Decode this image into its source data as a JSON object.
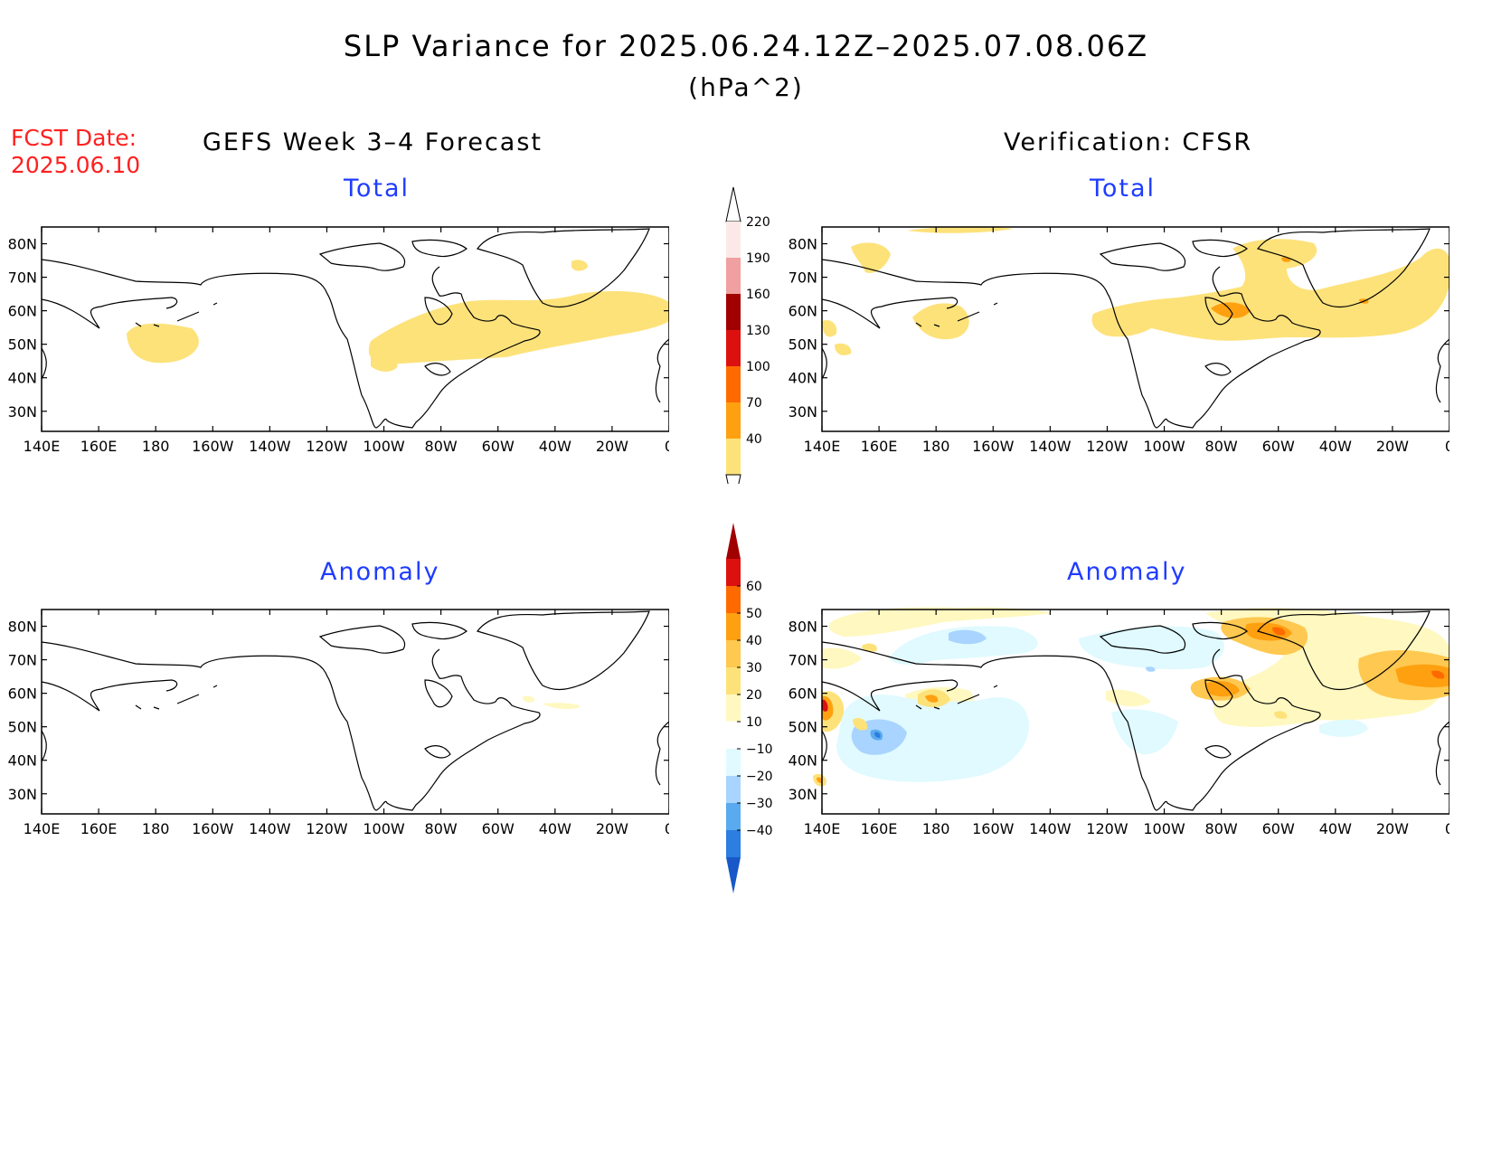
{
  "header": {
    "title": "SLP Variance for 2025.06.24.12Z–2025.07.08.06Z",
    "units": "(hPa^2)",
    "fcst_label": "FCST Date:",
    "fcst_date": "2025.06.10",
    "left_heading": "GEFS Week 3–4 Forecast",
    "right_heading": "Verification: CFSR"
  },
  "panels": {
    "fcst_total": {
      "title": "Total"
    },
    "fcst_anom": {
      "title": "Anomaly"
    },
    "obs_total": {
      "title": "Total"
    },
    "obs_anom": {
      "title": "Anomaly"
    }
  },
  "axes": {
    "lat_labels": [
      "80N",
      "70N",
      "60N",
      "50N",
      "40N",
      "30N"
    ],
    "lon_labels": [
      "140E",
      "160E",
      "180",
      "160W",
      "140W",
      "120W",
      "100W",
      "80W",
      "60W",
      "40W",
      "20W",
      "0"
    ]
  },
  "colorbars": {
    "total": {
      "levels": [
        "220",
        "190",
        "160",
        "130",
        "100",
        "70",
        "40"
      ],
      "colors": [
        "#fde8e8",
        "#f0a0a0",
        "#a00000",
        "#dd1010",
        "#ff6a00",
        "#ffa010",
        "#fde27a"
      ]
    },
    "anomaly": {
      "levels": [
        "60",
        "50",
        "40",
        "30",
        "20",
        "10",
        "−10",
        "−20",
        "−30",
        "−40"
      ],
      "colors": [
        "#a00000",
        "#dd1010",
        "#ff6a00",
        "#ffa010",
        "#ffc850",
        "#fde27a",
        "#fff8c0",
        "#ffffff",
        "#e0faff",
        "#a8d4ff",
        "#5aaaf0",
        "#2c7ee0",
        "#1858c8"
      ]
    }
  },
  "colors": {
    "total_light": "#fde27a",
    "total_orange": "#ffa010",
    "anom_pale_yellow": "#fff8c0",
    "anom_pale_blue": "#e0faff",
    "anom_light_blue": "#a8d4ff",
    "anom_mid_blue": "#5aaaf0",
    "anom_dark_blue": "#2c7ee0",
    "anom_yellow": "#fde27a",
    "anom_orange_light": "#ffc850",
    "anom_orange": "#ffa010",
    "anom_orange_dark": "#ff6a00",
    "anom_red": "#dd1010",
    "title_blue": "#1f3cff",
    "fcst_red": "#ff2020"
  }
}
